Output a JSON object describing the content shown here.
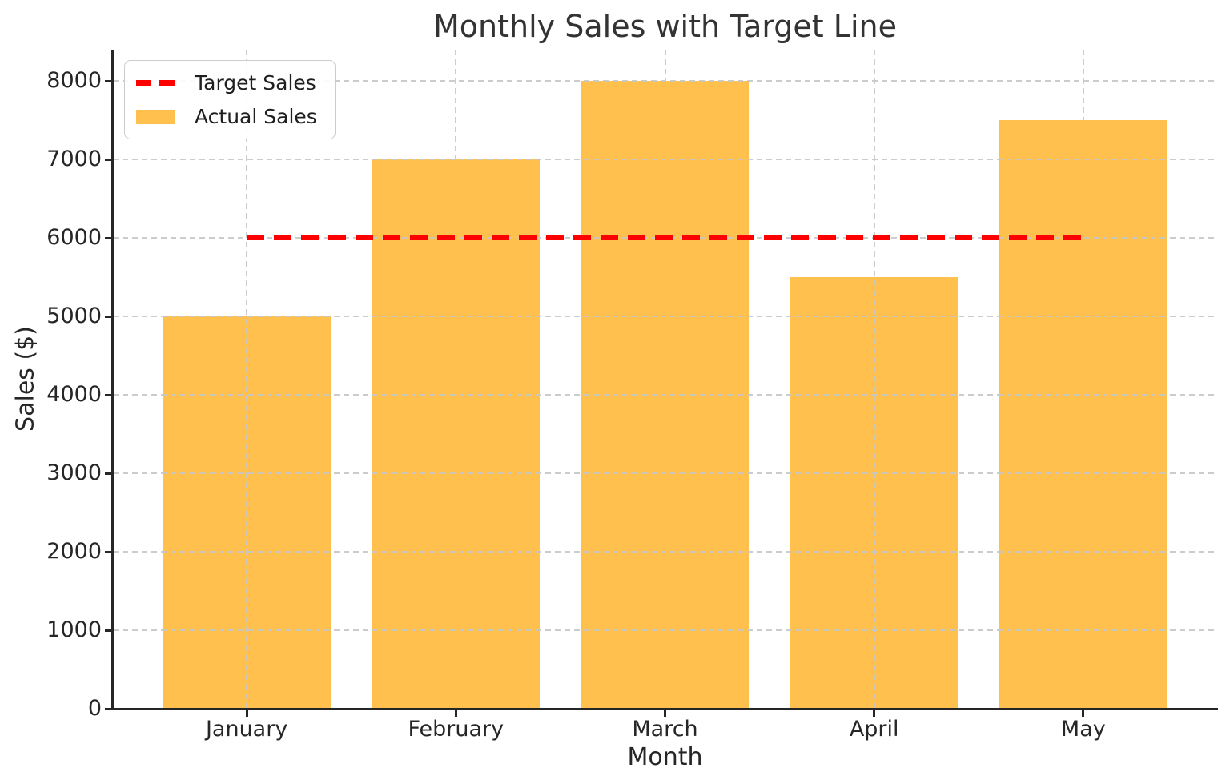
{
  "chart_data": {
    "type": "bar",
    "title": "Monthly Sales with Target Line",
    "xlabel": "Month",
    "ylabel": "Sales ($)",
    "categories": [
      "January",
      "February",
      "March",
      "April",
      "May"
    ],
    "series": [
      {
        "name": "Actual Sales",
        "type": "bar",
        "values": [
          5000,
          7000,
          8000,
          5500,
          7500
        ],
        "color": "#FFC04D"
      },
      {
        "name": "Target Sales",
        "type": "line",
        "style": "dashed",
        "values": [
          6000,
          6000,
          6000,
          6000,
          6000
        ],
        "color": "#FF0000"
      }
    ],
    "target_value": 6000,
    "ylim": [
      0,
      8400
    ],
    "xlim": [
      -0.64,
      4.64
    ],
    "yticks": [
      0,
      1000,
      2000,
      3000,
      4000,
      5000,
      6000,
      7000,
      8000
    ],
    "grid": true,
    "grid_color": "#c6c6c6",
    "legend": {
      "position": "upper-left",
      "items": [
        {
          "label": "Target Sales",
          "swatch": "dashed-line",
          "color": "#FF0000"
        },
        {
          "label": "Actual Sales",
          "swatch": "rect",
          "color": "#FFC04D"
        }
      ]
    }
  },
  "colors": {
    "background": "#ffffff",
    "axis": "#262626",
    "title_text": "#333333"
  }
}
